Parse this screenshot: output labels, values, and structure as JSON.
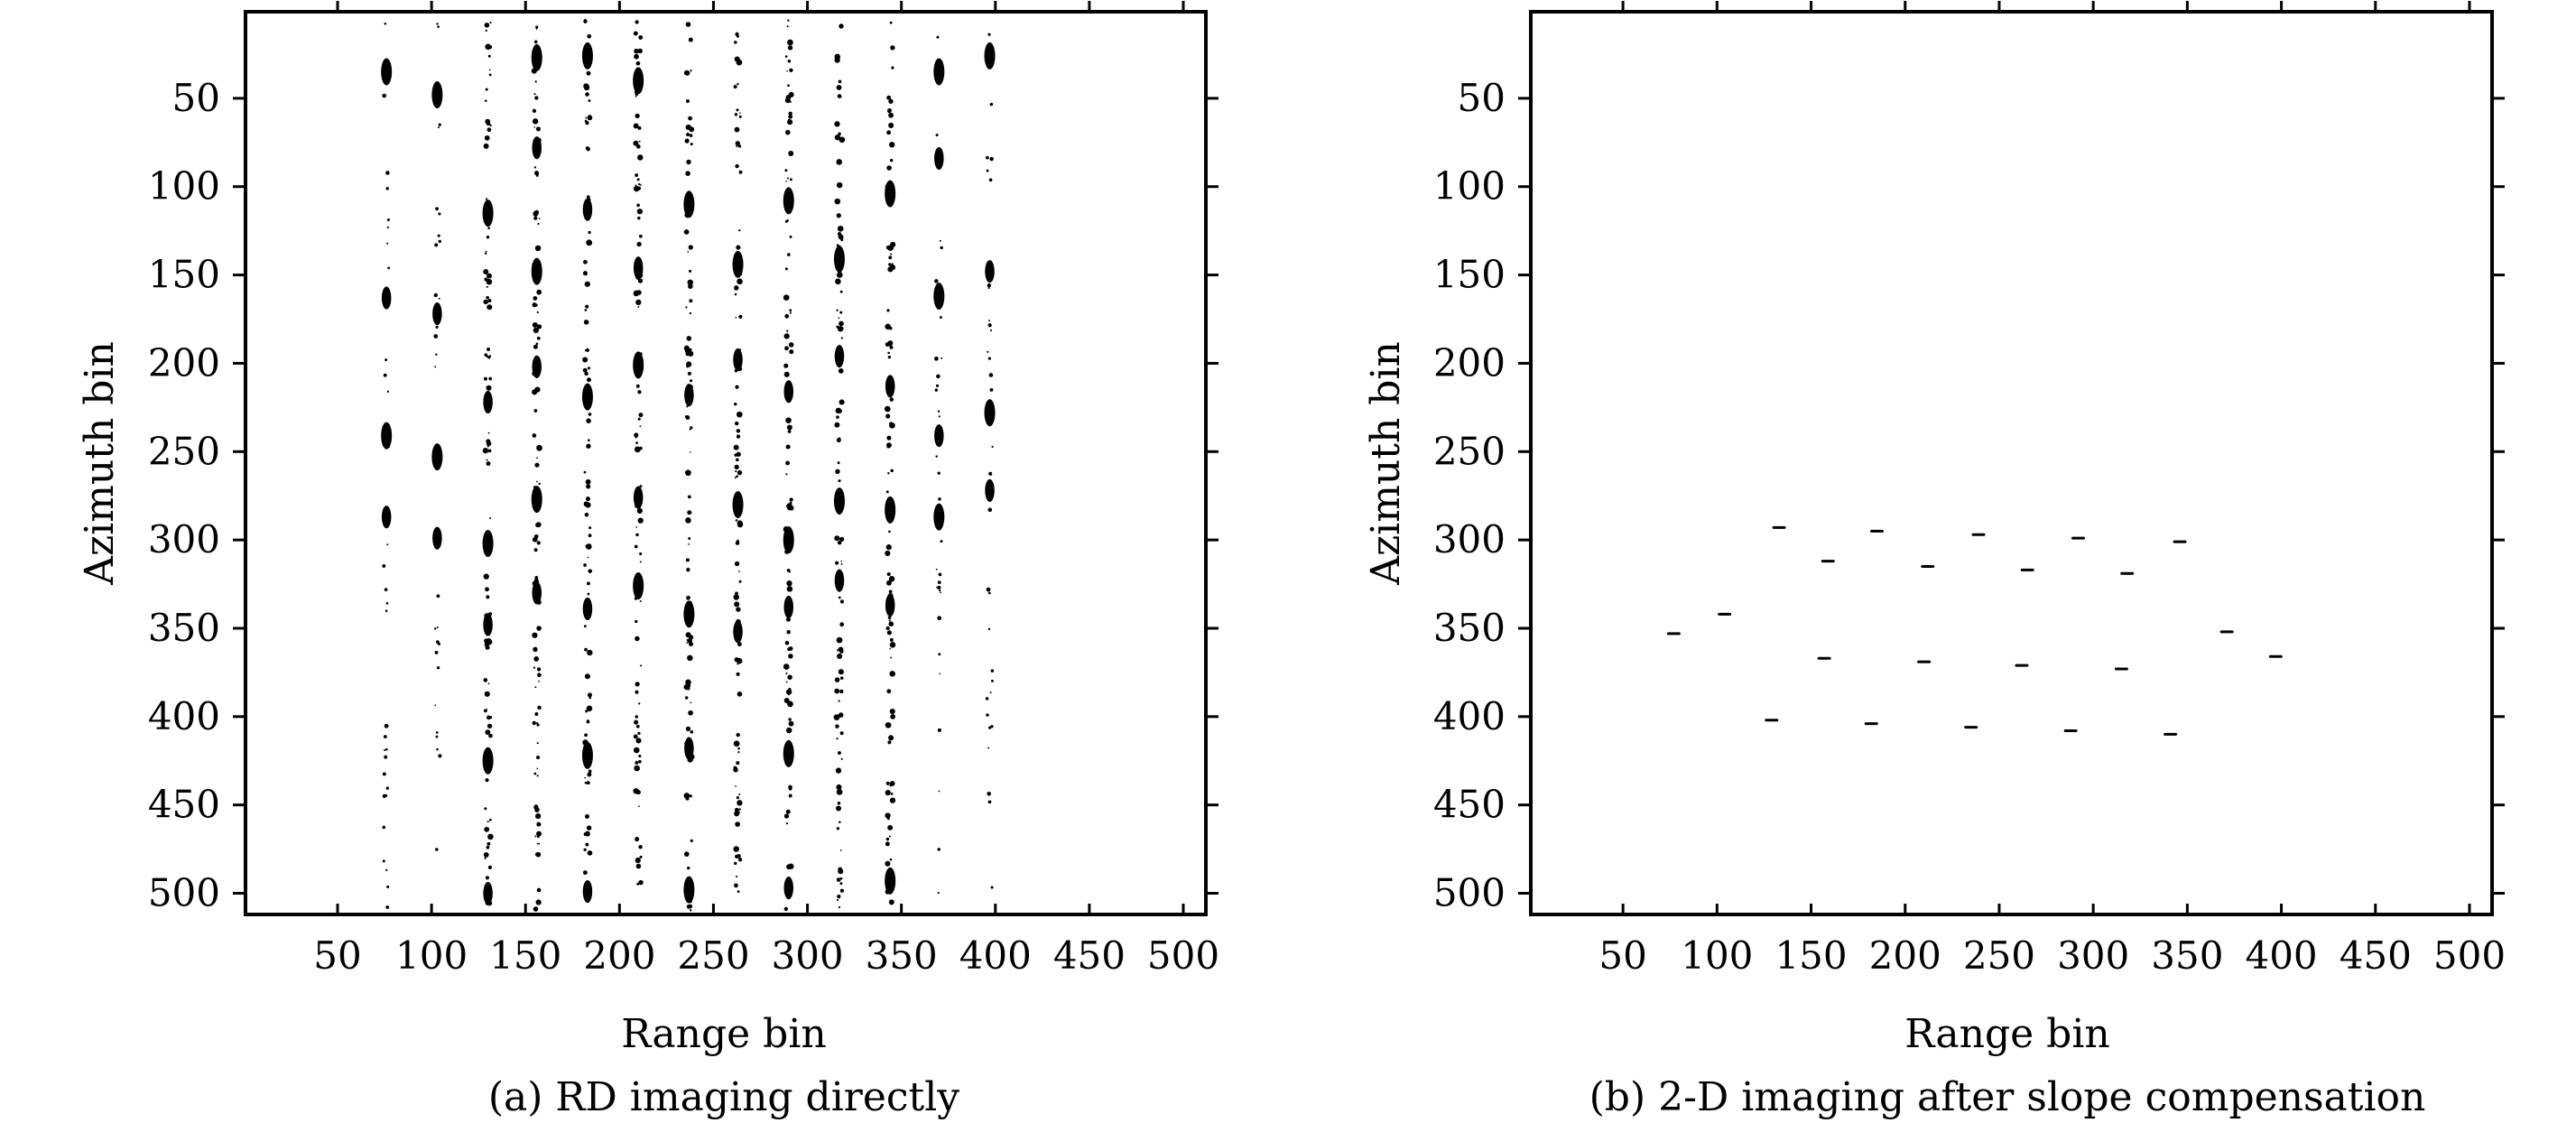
{
  "chart_data": [
    {
      "type": "scatter",
      "caption": "(a) RD imaging directly",
      "xlabel": "Range bin",
      "ylabel": "Azimuth bin",
      "xlim": [
        1,
        512
      ],
      "ylim": [
        1,
        512
      ],
      "y_reversed": true,
      "xticks": [
        50,
        100,
        150,
        200,
        250,
        300,
        350,
        400,
        450,
        500
      ],
      "yticks": [
        50,
        100,
        150,
        200,
        250,
        300,
        350,
        400,
        450,
        500
      ],
      "grid": false,
      "columns": [
        {
          "x": 76,
          "prominent_azimuths": [
            35,
            163,
            241,
            287
          ]
        },
        {
          "x": 103,
          "prominent_azimuths": [
            48,
            172,
            253,
            299
          ]
        },
        {
          "x": 130,
          "prominent_azimuths": [
            115,
            222,
            302,
            348,
            425,
            500
          ]
        },
        {
          "x": 156,
          "prominent_azimuths": [
            27,
            78,
            148,
            202,
            277,
            330
          ]
        },
        {
          "x": 183,
          "prominent_azimuths": [
            26,
            113,
            219,
            339,
            422,
            499
          ]
        },
        {
          "x": 210,
          "prominent_azimuths": [
            40,
            146,
            201,
            276,
            326
          ]
        },
        {
          "x": 237,
          "prominent_azimuths": [
            110,
            218,
            342,
            418,
            498
          ]
        },
        {
          "x": 263,
          "prominent_azimuths": [
            144,
            198,
            280,
            352
          ]
        },
        {
          "x": 290,
          "prominent_azimuths": [
            108,
            216,
            300,
            338,
            421,
            497
          ]
        },
        {
          "x": 317,
          "prominent_azimuths": [
            141,
            196,
            278,
            323
          ]
        },
        {
          "x": 344,
          "prominent_azimuths": [
            104,
            213,
            283,
            337,
            493
          ]
        },
        {
          "x": 370,
          "prominent_azimuths": [
            35,
            84,
            162,
            241,
            287
          ]
        },
        {
          "x": 397,
          "prominent_azimuths": [
            26,
            148,
            228,
            272
          ]
        }
      ]
    },
    {
      "type": "scatter",
      "caption": "(b) 2-D imaging after slope compensation",
      "xlabel": "Range bin",
      "ylabel": "Azimuth bin",
      "xlim": [
        1,
        512
      ],
      "ylim": [
        1,
        512
      ],
      "y_reversed": true,
      "xticks": [
        50,
        100,
        150,
        200,
        250,
        300,
        350,
        400,
        450,
        500
      ],
      "yticks": [
        50,
        100,
        150,
        200,
        250,
        300,
        350,
        400,
        450,
        500
      ],
      "grid": false,
      "points": [
        {
          "x": 133,
          "y": 293
        },
        {
          "x": 185,
          "y": 295
        },
        {
          "x": 239,
          "y": 297
        },
        {
          "x": 292,
          "y": 299
        },
        {
          "x": 346,
          "y": 301
        },
        {
          "x": 159,
          "y": 312
        },
        {
          "x": 212,
          "y": 315
        },
        {
          "x": 265,
          "y": 317
        },
        {
          "x": 318,
          "y": 319
        },
        {
          "x": 77,
          "y": 353
        },
        {
          "x": 104,
          "y": 342
        },
        {
          "x": 371,
          "y": 352
        },
        {
          "x": 397,
          "y": 366
        },
        {
          "x": 157,
          "y": 367
        },
        {
          "x": 210,
          "y": 369
        },
        {
          "x": 262,
          "y": 371
        },
        {
          "x": 315,
          "y": 373
        },
        {
          "x": 129,
          "y": 402
        },
        {
          "x": 182,
          "y": 404
        },
        {
          "x": 235,
          "y": 406
        },
        {
          "x": 288,
          "y": 408
        },
        {
          "x": 341,
          "y": 410
        }
      ]
    }
  ]
}
